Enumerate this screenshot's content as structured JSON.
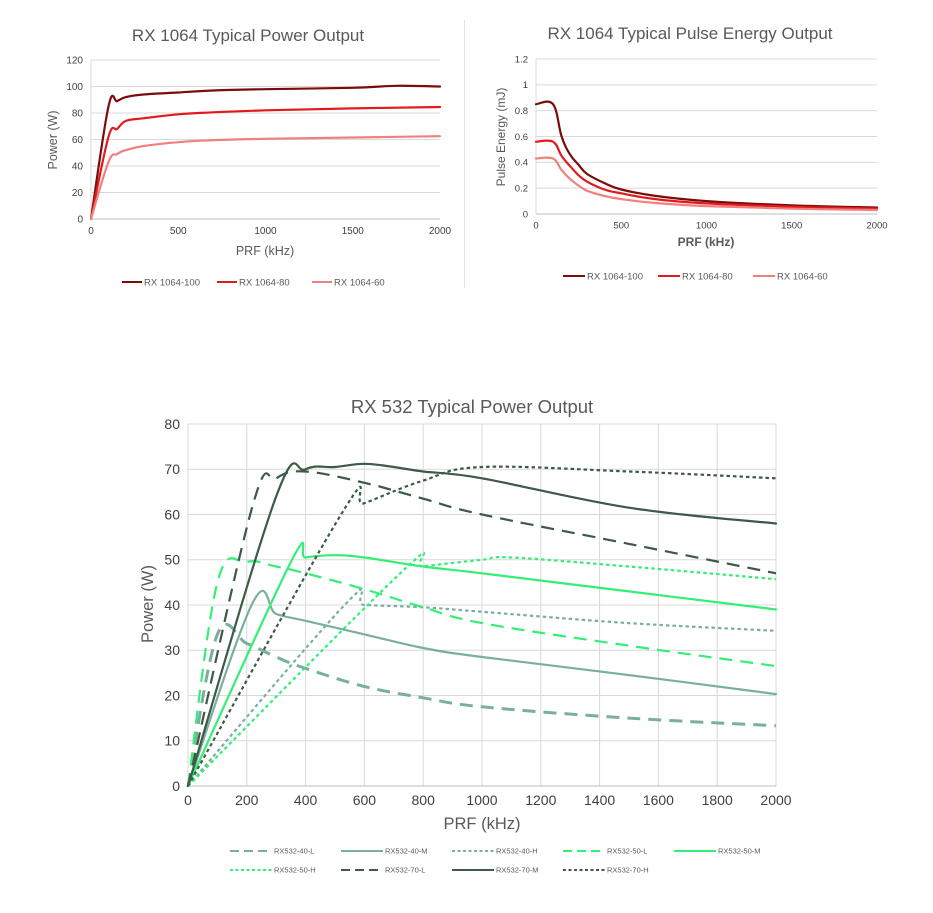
{
  "chart_data": [
    {
      "type": "line",
      "title": "RX 1064 Typical Power Output",
      "xlabel": "PRF (kHz)",
      "ylabel": "Power (W)",
      "xlim": [
        0,
        2000
      ],
      "ylim": [
        0,
        120
      ],
      "xticks": [
        0,
        500,
        1000,
        1500,
        2000
      ],
      "yticks": [
        0,
        20,
        40,
        60,
        80,
        100,
        120
      ],
      "grid": "horizontal",
      "legend": "bottom",
      "series": [
        {
          "name": "RX 1064-100",
          "color": "#7b0c0c",
          "dash": "solid",
          "x": [
            0,
            100,
            150,
            200,
            300,
            500,
            700,
            1000,
            1500,
            1750,
            2000
          ],
          "y": [
            0,
            85,
            89,
            92,
            94,
            95.5,
            97,
            98,
            99,
            100.5,
            100
          ]
        },
        {
          "name": "RX 1064-80",
          "color": "#e31a1c",
          "dash": "solid",
          "x": [
            0,
            100,
            150,
            200,
            300,
            500,
            700,
            1000,
            1500,
            2000
          ],
          "y": [
            0,
            62,
            68,
            74,
            76,
            79,
            80.5,
            82,
            83.5,
            84.5
          ]
        },
        {
          "name": "RX 1064-60",
          "color": "#f08080",
          "dash": "solid",
          "x": [
            0,
            100,
            150,
            200,
            300,
            500,
            700,
            1000,
            1500,
            2000
          ],
          "y": [
            0,
            43,
            49,
            52,
            55,
            58,
            59.5,
            60.5,
            61.5,
            62.5
          ]
        }
      ]
    },
    {
      "type": "line",
      "title": "RX 1064 Typical Pulse Energy Output",
      "xlabel": "PRF (kHz)",
      "ylabel": "Pulse Energy (mJ)",
      "xlim": [
        0,
        2000
      ],
      "ylim": [
        0,
        1.2
      ],
      "xticks": [
        0,
        500,
        1000,
        1500,
        2000
      ],
      "yticks": [
        0,
        0.2,
        0.4,
        0.6,
        0.8,
        1,
        1.2
      ],
      "grid": "horizontal",
      "legend": "bottom",
      "series": [
        {
          "name": "RX 1064-100",
          "color": "#7b0c0c",
          "dash": "solid",
          "x": [
            0,
            100,
            150,
            200,
            250,
            300,
            400,
            500,
            700,
            1000,
            1500,
            2000
          ],
          "y": [
            0.85,
            0.85,
            0.6,
            0.46,
            0.38,
            0.31,
            0.24,
            0.19,
            0.14,
            0.1,
            0.067,
            0.05
          ]
        },
        {
          "name": "RX 1064-80",
          "color": "#e31a1c",
          "dash": "solid",
          "x": [
            0,
            100,
            150,
            200,
            250,
            300,
            400,
            500,
            700,
            1000,
            1500,
            2000
          ],
          "y": [
            0.56,
            0.56,
            0.45,
            0.37,
            0.3,
            0.25,
            0.19,
            0.16,
            0.115,
            0.082,
            0.056,
            0.042
          ]
        },
        {
          "name": "RX 1064-60",
          "color": "#f08080",
          "dash": "solid",
          "x": [
            0,
            100,
            150,
            200,
            250,
            300,
            400,
            500,
            700,
            1000,
            1500,
            2000
          ],
          "y": [
            0.43,
            0.43,
            0.34,
            0.27,
            0.22,
            0.18,
            0.14,
            0.115,
            0.085,
            0.061,
            0.041,
            0.031
          ]
        }
      ]
    },
    {
      "type": "line",
      "title": "RX 532 Typical Power Output",
      "xlabel": "PRF (kHz)",
      "ylabel": "Power (W)",
      "xlim": [
        0,
        2000
      ],
      "ylim": [
        0,
        80
      ],
      "xticks": [
        0,
        200,
        400,
        600,
        800,
        1000,
        1200,
        1400,
        1600,
        1800,
        2000
      ],
      "yticks": [
        0,
        10,
        20,
        30,
        40,
        50,
        60,
        70,
        80
      ],
      "grid": "both",
      "legend": "bottom",
      "series": [
        {
          "name": "RX532-40-L",
          "color": "#7aaf9e",
          "dash": "longdash",
          "x": [
            0,
            100,
            200,
            300,
            400,
            600,
            800,
            1000,
            1500,
            2000
          ],
          "y": [
            0,
            33.5,
            31.5,
            28.5,
            26,
            22,
            19.5,
            17.5,
            15,
            13.3
          ]
        },
        {
          "name": "RX532-40-M",
          "color": "#7aaf9e",
          "dash": "solid",
          "x": [
            0,
            220,
            300,
            400,
            600,
            800,
            1000,
            1500,
            2000
          ],
          "y": [
            0,
            40.5,
            38,
            36.5,
            33.5,
            30.5,
            28.5,
            24.5,
            20.3
          ]
        },
        {
          "name": "RX532-40-H",
          "color": "#7aaf9e",
          "dash": "dot",
          "x": [
            0,
            540,
            600,
            800,
            1000,
            1500,
            2000
          ],
          "y": [
            0,
            40.5,
            40,
            39.5,
            38.5,
            36,
            34.3
          ]
        },
        {
          "name": "RX532-50-L",
          "color": "#33ee77",
          "dash": "longdash",
          "x": [
            0,
            100,
            200,
            300,
            400,
            600,
            800,
            1000,
            1500,
            2000
          ],
          "y": [
            0,
            45,
            49.5,
            48.5,
            47,
            43.5,
            39.5,
            36,
            31,
            26.5
          ]
        },
        {
          "name": "RX532-50-M",
          "color": "#33ee77",
          "dash": "solid",
          "x": [
            0,
            350,
            400,
            500,
            600,
            800,
            1000,
            1500,
            2000
          ],
          "y": [
            0,
            49.5,
            50.5,
            51,
            50.5,
            48.5,
            47,
            43,
            39
          ]
        },
        {
          "name": "RX532-50-H",
          "color": "#33ee77",
          "dash": "dot",
          "x": [
            0,
            730,
            800,
            1000,
            1100,
            1500,
            2000
          ],
          "y": [
            0,
            47.5,
            48.5,
            50,
            50.5,
            48.5,
            45.7
          ]
        },
        {
          "name": "RX532-70-L",
          "color": "#3c5a45",
          "dash": "longdash",
          "x": [
            0,
            220,
            300,
            400,
            600,
            800,
            1000,
            1500,
            2000
          ],
          "y": [
            0,
            62,
            68,
            69.5,
            67,
            63.5,
            60,
            53.5,
            47
          ]
        },
        {
          "name": "RX532-70-M",
          "color": "#3c5a45",
          "dash": "solid",
          "x": [
            0,
            300,
            400,
            500,
            600,
            700,
            800,
            1000,
            1500,
            2000
          ],
          "y": [
            0,
            64,
            70,
            70.5,
            71.2,
            70.5,
            69.5,
            68,
            61.5,
            58
          ]
        },
        {
          "name": "RX532-70-H",
          "color": "#3c5a45",
          "dash": "dot",
          "x": [
            0,
            530,
            600,
            800,
            1000,
            1500,
            2000
          ],
          "y": [
            0,
            61,
            62.5,
            67.5,
            70.5,
            69.5,
            68
          ]
        }
      ]
    }
  ]
}
